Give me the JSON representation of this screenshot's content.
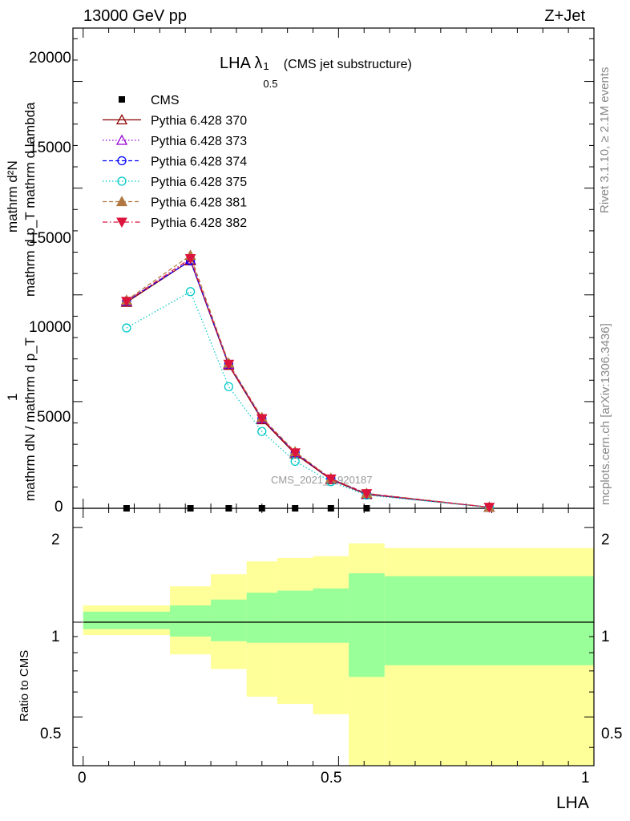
{
  "header": {
    "left": "13000 GeV pp",
    "right": "Z+Jet"
  },
  "side_labels": {
    "rivet": "Rivet 3.1.10, ≥ 2.1M events",
    "mcplots": "mcplots.cern.ch [arXiv:1306.3436]"
  },
  "main_plot": {
    "title_main": "LHA λ",
    "title_sup": "1",
    "title_sub": "0.5",
    "title_suffix": " (CMS jet substructure)",
    "ylabel_numerator": "mathrm d²N",
    "ylabel_denominator_upper": "mathrm d p_T mathrm d lambda",
    "ylabel_one": "1",
    "ylabel_denominator_lower": "mathrm dN / mathrm d p_T",
    "watermark": "CMS_2021_I1920187",
    "yticks": [
      "0",
      "5000",
      "10000",
      "15000",
      "20000"
    ]
  },
  "ratio_plot": {
    "ylabel": "Ratio to CMS",
    "yticks": [
      "0.5",
      "1",
      "2"
    ]
  },
  "x_axis": {
    "label": "LHA",
    "ticks": [
      "0",
      "0.5",
      "1"
    ]
  },
  "legend": [
    {
      "label": "CMS",
      "color": "#000000",
      "marker": "square-filled",
      "dash": "none"
    },
    {
      "label": "Pythia 6.428 370",
      "color": "#8b0000",
      "marker": "triangle-up-open",
      "dash": "solid"
    },
    {
      "label": "Pythia 6.428 373",
      "color": "#9400d3",
      "marker": "triangle-up-open",
      "dash": "dotted"
    },
    {
      "label": "Pythia 6.428 374",
      "color": "#0000ff",
      "marker": "circle-open",
      "dash": "dashed"
    },
    {
      "label": "Pythia 6.428 375",
      "color": "#00c8c8",
      "marker": "circle-open",
      "dash": "dotted"
    },
    {
      "label": "Pythia 6.428 381",
      "color": "#b07840",
      "marker": "triangle-up-filled",
      "dash": "dashed"
    },
    {
      "label": "Pythia 6.428 382",
      "color": "#dc143c",
      "marker": "triangle-down-filled",
      "dash": "dashdot"
    }
  ],
  "chart_data": {
    "type": "line",
    "xlabel": "LHA",
    "ylim": [
      0,
      22500
    ],
    "xlim": [
      -0.02,
      1.0
    ],
    "x": [
      0.085,
      0.21,
      0.285,
      0.35,
      0.415,
      0.485,
      0.555,
      0.795
    ],
    "series": [
      {
        "name": "CMS",
        "values": [
          0,
          0,
          0,
          0,
          0,
          0,
          0,
          null
        ]
      },
      {
        "name": "Pythia 6.428 370",
        "values": [
          9650,
          11600,
          6700,
          4150,
          2550,
          1350,
          650,
          50
        ]
      },
      {
        "name": "Pythia 6.428 373",
        "values": [
          9700,
          11650,
          6750,
          4200,
          2600,
          1380,
          680,
          50
        ]
      },
      {
        "name": "Pythia 6.428 374",
        "values": [
          9700,
          11600,
          6750,
          4200,
          2600,
          1380,
          680,
          50
        ]
      },
      {
        "name": "Pythia 6.428 375",
        "values": [
          8450,
          10150,
          5700,
          3600,
          2200,
          1250,
          620,
          40
        ]
      },
      {
        "name": "Pythia 6.428 381",
        "values": [
          9750,
          11850,
          6800,
          4250,
          2650,
          1400,
          700,
          50
        ]
      },
      {
        "name": "Pythia 6.428 382",
        "values": [
          9700,
          11700,
          6750,
          4200,
          2600,
          1380,
          690,
          50
        ]
      }
    ],
    "ratio": {
      "ylabel": "Ratio to CMS",
      "ylim": [
        0.35,
        2.3
      ],
      "scale": "log",
      "bin_edges": [
        0.0,
        0.17,
        0.25,
        0.32,
        0.38,
        0.45,
        0.52,
        0.59,
        1.0
      ],
      "inner_band": [
        [
          0.95,
          1.08
        ],
        [
          0.9,
          1.13
        ],
        [
          0.87,
          1.18
        ],
        [
          0.86,
          1.24
        ],
        [
          0.86,
          1.26
        ],
        [
          0.86,
          1.28
        ],
        [
          0.67,
          1.43
        ],
        [
          0.73,
          1.4
        ]
      ],
      "outer_band": [
        [
          0.91,
          1.13
        ],
        [
          0.79,
          1.3
        ],
        [
          0.71,
          1.42
        ],
        [
          0.58,
          1.56
        ],
        [
          0.55,
          1.6
        ],
        [
          0.51,
          1.62
        ],
        [
          0.35,
          1.78
        ],
        [
          0.35,
          1.72
        ]
      ]
    }
  }
}
